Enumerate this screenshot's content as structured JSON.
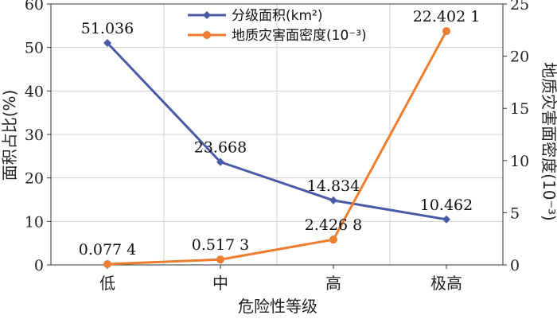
{
  "chart_data": {
    "type": "line",
    "categories": [
      "低",
      "中",
      "高",
      "极高"
    ],
    "xlabel": "危险性等级",
    "ylabel_left": "面积占比(%)",
    "ylabel_right": "地质灾害面密度(10⁻³)",
    "y_left": {
      "min": 0,
      "max": 60,
      "ticks": [
        0,
        10,
        20,
        30,
        40,
        50,
        60
      ]
    },
    "y_right": {
      "min": 0,
      "max": 25,
      "ticks": [
        0,
        5,
        10,
        15,
        20,
        25
      ]
    },
    "grid": true,
    "legend_position": "top-center",
    "series": [
      {
        "name": "分级面积(km²)",
        "axis": "left",
        "color": "#4a5aa6",
        "marker": "diamond",
        "values": [
          51.036,
          23.668,
          14.834,
          10.462
        ],
        "labels": [
          "51.036",
          "23.668",
          "14.834",
          "10.462"
        ]
      },
      {
        "name": "地质灾害面密度(10⁻³)",
        "axis": "right",
        "color": "#ed7d31",
        "marker": "circle",
        "values": [
          0.0774,
          0.5173,
          2.4268,
          22.4021
        ],
        "labels": [
          "0.077 4",
          "0.517 3",
          "2.426 8",
          "22.402 1"
        ]
      }
    ]
  }
}
